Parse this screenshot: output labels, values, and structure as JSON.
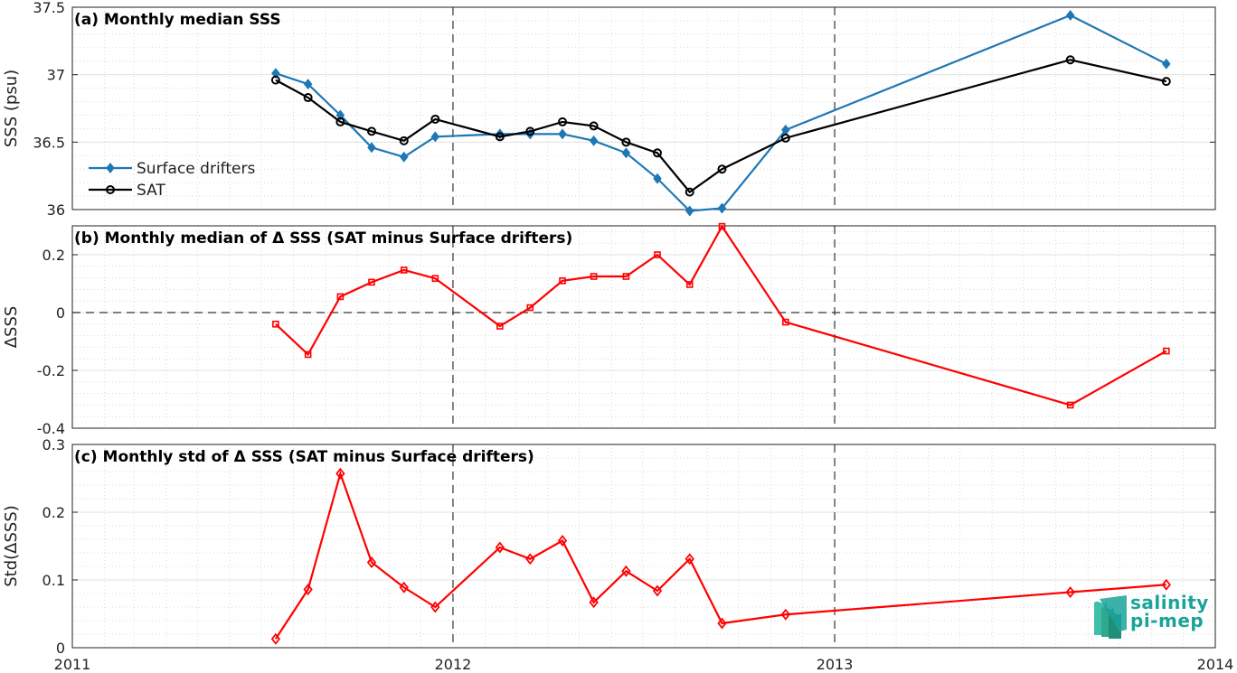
{
  "chart_data": [
    {
      "panel": "a",
      "type": "line",
      "title": "(a) Monthly median SSS",
      "ylabel": "SSS (psu)",
      "ylim": [
        36,
        37.5
      ],
      "yticks": [
        "36",
        "36.5",
        "37",
        "37.5"
      ],
      "legend": "middle-left",
      "grid": true,
      "series": [
        {
          "name": "Surface drifters",
          "color": "#1f77b4",
          "marker": "diamond",
          "x": [
            "2011-07-15",
            "2011-08-15",
            "2011-09-15",
            "2011-10-15",
            "2011-11-15",
            "2011-12-15",
            "2012-02-15",
            "2012-03-15",
            "2012-04-15",
            "2012-05-15",
            "2012-06-15",
            "2012-07-15",
            "2012-08-15",
            "2012-09-15",
            "2012-11-15",
            "2013-08-15",
            "2013-11-15"
          ],
          "values": [
            37.01,
            36.93,
            36.7,
            36.46,
            36.39,
            36.54,
            36.56,
            36.56,
            36.56,
            36.51,
            36.42,
            36.23,
            35.99,
            36.01,
            36.59,
            37.44,
            37.08
          ]
        },
        {
          "name": "SAT",
          "color": "#000000",
          "marker": "circle",
          "x": [
            "2011-07-15",
            "2011-08-15",
            "2011-09-15",
            "2011-10-15",
            "2011-11-15",
            "2011-12-15",
            "2012-02-15",
            "2012-03-15",
            "2012-04-15",
            "2012-05-15",
            "2012-06-15",
            "2012-07-15",
            "2012-08-15",
            "2012-09-15",
            "2012-11-15",
            "2013-08-15",
            "2013-11-15"
          ],
          "values": [
            36.96,
            36.83,
            36.65,
            36.58,
            36.51,
            36.67,
            36.54,
            36.58,
            36.65,
            36.62,
            36.5,
            36.42,
            36.13,
            36.3,
            36.53,
            37.11,
            36.95
          ]
        }
      ]
    },
    {
      "panel": "b",
      "type": "line",
      "title": "(b) Monthly median of Δ SSS (SAT minus Surface drifters)",
      "ylabel": "ΔSSS",
      "ylim": [
        -0.4,
        0.3
      ],
      "yticks": [
        "-0.4",
        "-0.2",
        "0",
        "0.2"
      ],
      "grid": true,
      "series": [
        {
          "color": "#ff0000",
          "marker": "square",
          "x": [
            "2011-07-15",
            "2011-08-15",
            "2011-09-15",
            "2011-10-15",
            "2011-11-15",
            "2011-12-15",
            "2012-02-15",
            "2012-03-15",
            "2012-04-15",
            "2012-05-15",
            "2012-06-15",
            "2012-07-15",
            "2012-08-15",
            "2012-09-15",
            "2012-11-15",
            "2013-08-15",
            "2013-11-15"
          ],
          "values": [
            -0.04,
            -0.145,
            0.055,
            0.105,
            0.147,
            0.118,
            -0.047,
            0.017,
            0.11,
            0.125,
            0.125,
            0.2,
            0.097,
            0.298,
            -0.033,
            -0.32,
            -0.133
          ]
        }
      ]
    },
    {
      "panel": "c",
      "type": "line",
      "title": "(c) Monthly std of Δ SSS (SAT minus Surface drifters)",
      "ylabel": "Std(ΔSSS)",
      "ylim": [
        0,
        0.3
      ],
      "yticks": [
        "0",
        "0.1",
        "0.2",
        "0.3"
      ],
      "xticks": [
        "2011",
        "2012",
        "2013",
        "2014"
      ],
      "grid": true,
      "series": [
        {
          "color": "#ff0000",
          "marker": "diamond",
          "x": [
            "2011-07-15",
            "2011-08-15",
            "2011-09-15",
            "2011-10-15",
            "2011-11-15",
            "2011-12-15",
            "2012-02-15",
            "2012-03-15",
            "2012-04-15",
            "2012-05-15",
            "2012-06-15",
            "2012-07-15",
            "2012-08-15",
            "2012-09-15",
            "2012-11-15",
            "2013-08-15",
            "2013-11-15"
          ],
          "values": [
            0.013,
            0.086,
            0.257,
            0.126,
            0.089,
            0.06,
            0.148,
            0.131,
            0.158,
            0.067,
            0.113,
            0.084,
            0.131,
            0.036,
            0.049,
            0.082,
            0.093
          ]
        }
      ]
    }
  ],
  "logo": {
    "line1": "salinity",
    "line2": "pi-mep"
  }
}
